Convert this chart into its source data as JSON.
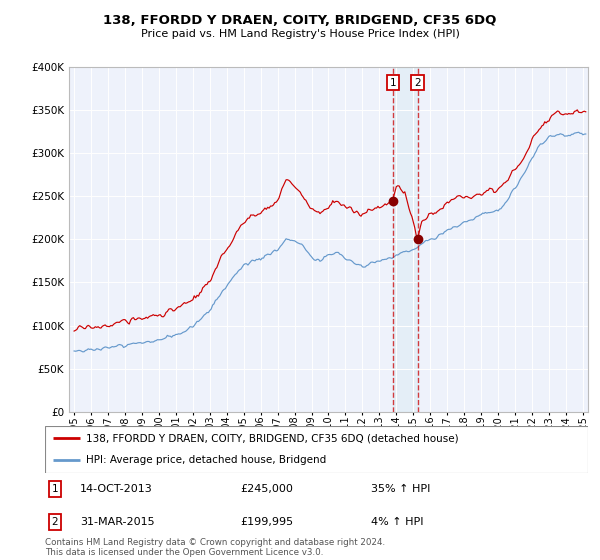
{
  "title": "138, FFORDD Y DRAEN, COITY, BRIDGEND, CF35 6DQ",
  "subtitle": "Price paid vs. HM Land Registry's House Price Index (HPI)",
  "red_label": "138, FFORDD Y DRAEN, COITY, BRIDGEND, CF35 6DQ (detached house)",
  "blue_label": "HPI: Average price, detached house, Bridgend",
  "transaction1_date": "14-OCT-2013",
  "transaction1_price": 245000,
  "transaction1_hpi": "35% ↑ HPI",
  "transaction2_date": "31-MAR-2015",
  "transaction2_price": 199995,
  "transaction2_hpi": "4% ↑ HPI",
  "footer": "Contains HM Land Registry data © Crown copyright and database right 2024.\nThis data is licensed under the Open Government Licence v3.0.",
  "ylim": [
    0,
    400000
  ],
  "yticks": [
    0,
    50000,
    100000,
    150000,
    200000,
    250000,
    300000,
    350000,
    400000
  ],
  "red_color": "#cc0000",
  "blue_color": "#6699cc",
  "background_color": "#eef2fb",
  "transaction1_x": 2013.79,
  "transaction2_x": 2015.25,
  "grid_color": "#ffffff",
  "spine_color": "#bbbbbb"
}
